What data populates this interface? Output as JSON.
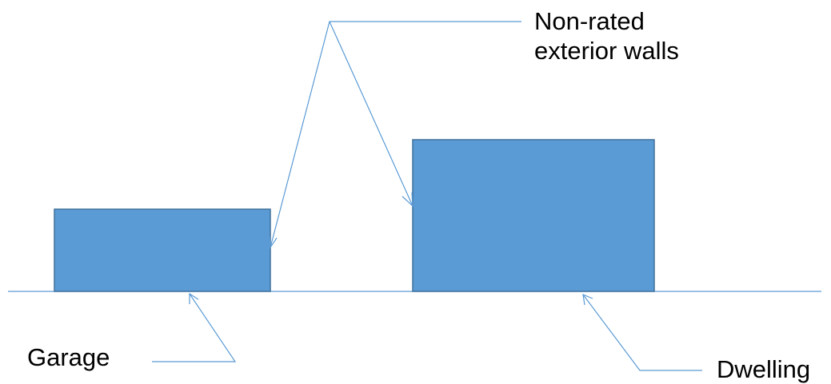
{
  "labels": {
    "walls_line1": "Non-rated",
    "walls_line2": "exterior walls",
    "garage": "Garage",
    "dwelling": "Dwelling"
  },
  "colors": {
    "box_fill": "#5b9bd5",
    "box_stroke": "#41719c",
    "line": "#5b9bd5",
    "text": "#000000"
  }
}
